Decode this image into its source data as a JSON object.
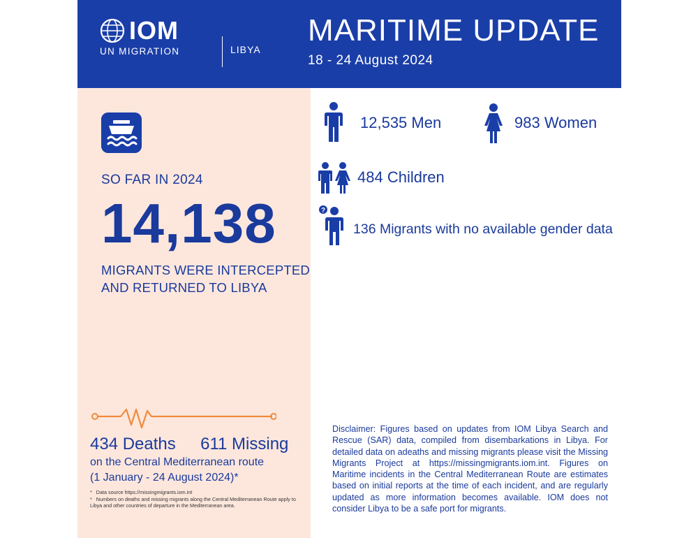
{
  "header": {
    "logo_main": "IOM",
    "logo_sub": "UN MIGRATION",
    "country": "LIBYA",
    "title": "MARITIME UPDATE",
    "date": "18 - 24 August 2024"
  },
  "summary": {
    "so_far": "SO FAR IN 2024",
    "total": "14,138",
    "description": "MIGRANTS WERE INTERCEPTED AND RETURNED TO LIBYA"
  },
  "breakdown": {
    "men": "12,535 Men",
    "women": "983 Women",
    "children": "484 Children",
    "no_gender": "136 Migrants with no available gender data"
  },
  "casualties": {
    "deaths": "434 Deaths",
    "missing": "611 Missing",
    "route": "on the Central Mediterranean route",
    "period": "(1 January - 24 August 2024)*",
    "footnote1": "Data source https://missingmigrants.iom.int",
    "footnote2": "Numbers on deaths and missing migrants along the Central Mediterranean Route apply to Libya and other countries of departure in the Mediterranean area."
  },
  "disclaimer": "Disclaimer: Figures based on updates from IOM Libya Search and Rescue (SAR) data, compiled from disembarkations in Libya. For detailed data on adeaths and missing migrants please visit the Missing Migrants Project at https://missingmigrants.iom.int. Figures on Maritime incidents in the Central Mediterranean Route are estimates based on initial reports at the time of each incident, and are regularly updated as more information becomes available. IOM does not consider Libya to be a safe port for migrants.",
  "colors": {
    "brand_blue": "#1a3ea8",
    "panel_peach": "#fde7dd",
    "accent_orange": "#f08a3c"
  },
  "icons": [
    "globe-icon",
    "boat-icon",
    "man-icon",
    "woman-icon",
    "children-icon",
    "unknown-person-icon",
    "heartbeat-icon"
  ]
}
